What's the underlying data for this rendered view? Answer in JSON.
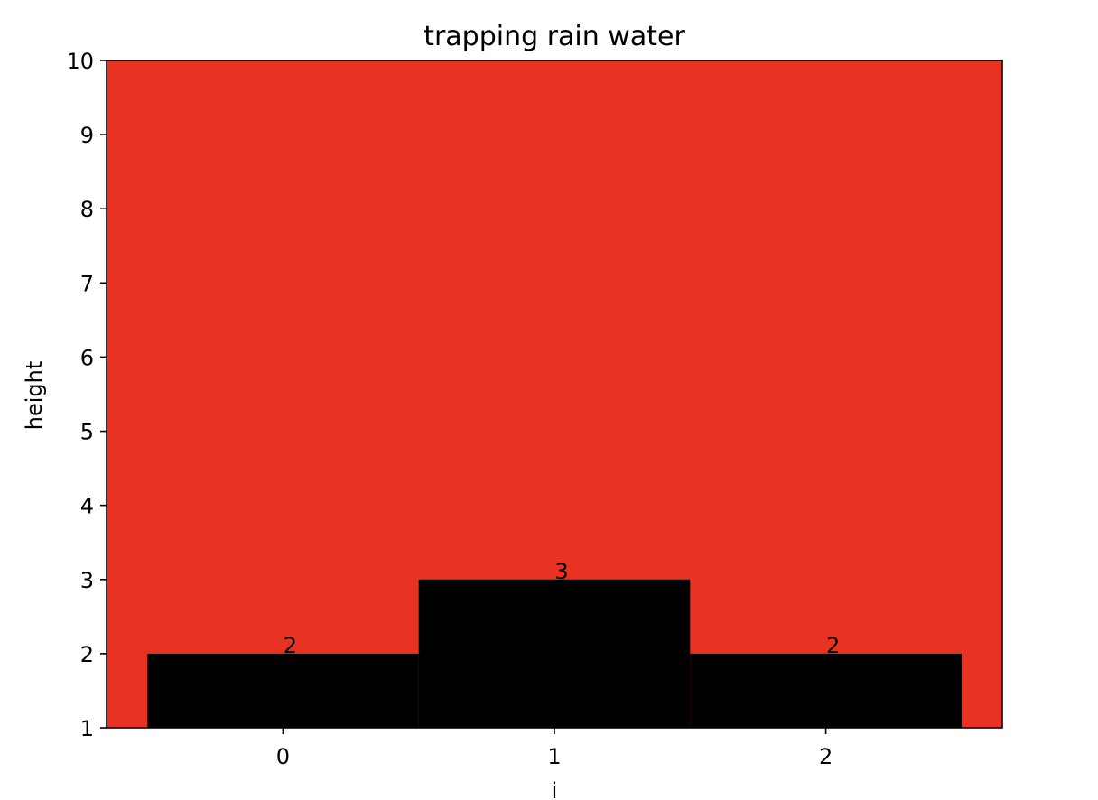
{
  "chart_data": {
    "type": "bar",
    "title": "trapping rain water",
    "xlabel": "i",
    "ylabel": "height",
    "categories": [
      "0",
      "1",
      "2"
    ],
    "x": [
      0,
      1,
      2
    ],
    "values": [
      2,
      3,
      2
    ],
    "data_labels": [
      "2",
      "3",
      "2"
    ],
    "xlim": [
      -0.65,
      2.65
    ],
    "ylim": [
      1,
      10
    ],
    "yticks": [
      1,
      2,
      3,
      4,
      5,
      6,
      7,
      8,
      9,
      10
    ],
    "ytick_labels": [
      "1",
      "2",
      "3",
      "4",
      "5",
      "6",
      "7",
      "8",
      "9",
      "10"
    ],
    "bar_width": 1.0,
    "grid": false,
    "colors": {
      "plot_background": "#e83323",
      "bar": "#000000"
    }
  }
}
